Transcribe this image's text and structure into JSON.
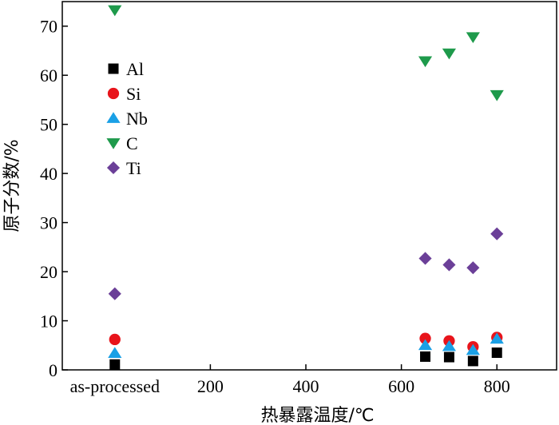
{
  "chart_data": {
    "type": "scatter",
    "title": "",
    "xlabel": "热暴露温度/℃",
    "ylabel": "原子分数/%",
    "xlim": [
      -110,
      925
    ],
    "ylim": [
      0,
      75
    ],
    "x_ticks": [
      {
        "value": 0,
        "label": "as-processed"
      },
      {
        "value": 200,
        "label": "200"
      },
      {
        "value": 400,
        "label": "400"
      },
      {
        "value": 600,
        "label": "600"
      },
      {
        "value": 800,
        "label": "800"
      }
    ],
    "y_ticks": [
      0,
      10,
      20,
      30,
      40,
      50,
      60,
      70
    ],
    "y_tick_labels": [
      "0",
      "10",
      "20",
      "30",
      "40",
      "50",
      "60",
      "70"
    ],
    "legend_position": "upper-left",
    "series": [
      {
        "name": "Al",
        "marker": "square",
        "color": "#000000",
        "points": [
          [
            0,
            1.1
          ],
          [
            650,
            2.7
          ],
          [
            700,
            2.6
          ],
          [
            750,
            1.8
          ],
          [
            800,
            3.5
          ]
        ]
      },
      {
        "name": "Si",
        "marker": "circle",
        "color": "#e8141b",
        "points": [
          [
            0,
            6.2
          ],
          [
            650,
            6.4
          ],
          [
            700,
            5.9
          ],
          [
            750,
            4.7
          ],
          [
            800,
            6.6
          ]
        ]
      },
      {
        "name": "Nb",
        "marker": "triangle-up",
        "color": "#1aa0e6",
        "points": [
          [
            0,
            3.4
          ],
          [
            650,
            5.0
          ],
          [
            700,
            4.8
          ],
          [
            750,
            4.0
          ],
          [
            800,
            6.3
          ]
        ]
      },
      {
        "name": "C",
        "marker": "triangle-down",
        "color": "#1e9a4b",
        "points": [
          [
            0,
            73.3
          ],
          [
            650,
            62.9
          ],
          [
            700,
            64.5
          ],
          [
            750,
            67.8
          ],
          [
            800,
            56.0
          ]
        ]
      },
      {
        "name": "Ti",
        "marker": "diamond",
        "color": "#6b3f98",
        "points": [
          [
            0,
            15.5
          ],
          [
            650,
            22.7
          ],
          [
            700,
            21.4
          ],
          [
            750,
            20.8
          ],
          [
            800,
            27.7
          ]
        ]
      }
    ]
  }
}
